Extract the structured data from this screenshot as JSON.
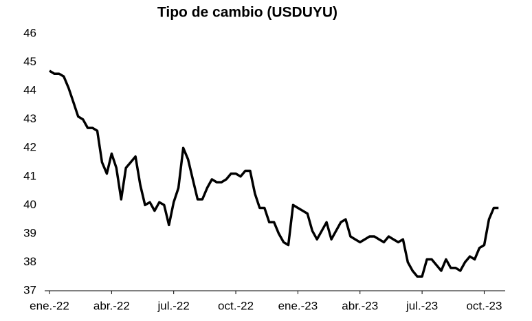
{
  "chart_data": {
    "type": "line",
    "title": "Tipo de cambio (USDUYU)",
    "categories": [
      "ene.-22",
      null,
      null,
      null,
      null,
      null,
      null,
      null,
      null,
      null,
      null,
      null,
      null,
      "abr.-22",
      null,
      null,
      null,
      null,
      null,
      null,
      null,
      null,
      null,
      null,
      null,
      null,
      "jul.-22",
      null,
      null,
      null,
      null,
      null,
      null,
      null,
      null,
      null,
      null,
      null,
      null,
      "oct.-22",
      null,
      null,
      null,
      null,
      null,
      null,
      null,
      null,
      null,
      null,
      null,
      null,
      "ene.-23",
      null,
      null,
      null,
      null,
      null,
      null,
      null,
      null,
      null,
      null,
      null,
      null,
      "abr.-23",
      null,
      null,
      null,
      null,
      null,
      null,
      null,
      null,
      null,
      null,
      null,
      null,
      "jul.-23",
      null,
      null,
      null,
      null,
      null,
      null,
      null,
      null,
      null,
      null,
      null,
      null,
      "oct.-23",
      null,
      null,
      null
    ],
    "values": [
      44.7,
      44.6,
      44.6,
      44.5,
      44.1,
      43.6,
      43.1,
      43.0,
      42.7,
      42.7,
      42.6,
      41.5,
      41.1,
      41.8,
      41.3,
      40.2,
      41.3,
      41.5,
      41.7,
      40.7,
      40.0,
      40.1,
      39.8,
      40.1,
      40.0,
      39.3,
      40.1,
      40.6,
      42.0,
      41.6,
      40.9,
      40.2,
      40.2,
      40.6,
      40.9,
      40.8,
      40.8,
      40.9,
      41.1,
      41.1,
      41.0,
      41.2,
      41.2,
      40.4,
      39.9,
      39.9,
      39.4,
      39.4,
      39.0,
      38.7,
      38.6,
      40.0,
      39.9,
      39.8,
      39.7,
      39.1,
      38.8,
      39.1,
      39.4,
      38.8,
      39.1,
      39.4,
      39.5,
      38.9,
      38.8,
      38.7,
      38.8,
      38.9,
      38.9,
      38.8,
      38.7,
      38.9,
      38.8,
      38.7,
      38.8,
      38.0,
      37.7,
      37.5,
      37.5,
      38.1,
      38.1,
      37.9,
      37.7,
      38.1,
      37.8,
      37.8,
      37.7,
      38.0,
      38.2,
      38.1,
      38.5,
      38.6,
      39.5,
      39.9,
      39.9
    ],
    "color": "#000000",
    "ylim": [
      37,
      46
    ],
    "yticks": [
      37,
      38,
      39,
      40,
      41,
      42,
      43,
      44,
      45,
      46
    ]
  }
}
